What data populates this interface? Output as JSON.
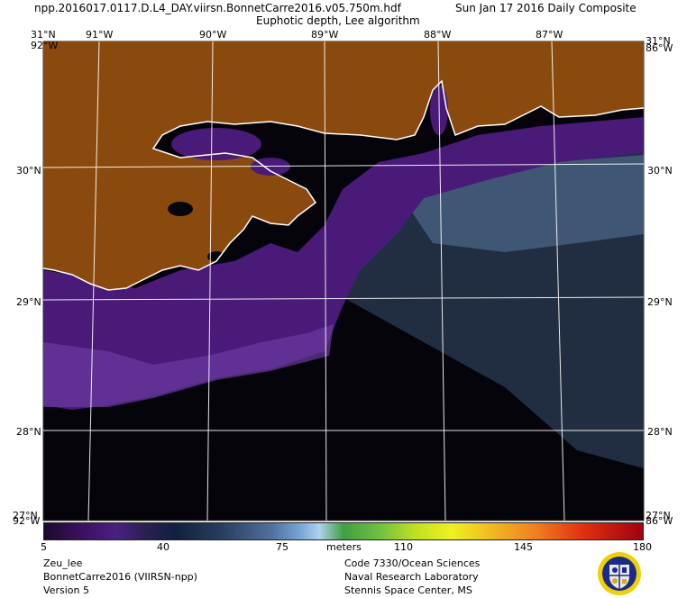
{
  "title": {
    "line1": "npp.2016017.0117.D.L4_DAY.viirsn.BonnetCarre2016.v05.750m.hdf",
    "date": "Sun Jan 17 2016 Daily Composite",
    "line2": "Euphotic depth, Lee algorithm"
  },
  "map": {
    "lon_labels": [
      "91°W",
      "90°W",
      "89°W",
      "88°W",
      "87°W"
    ],
    "lat_labels": [
      "30°N",
      "29°N",
      "28°N"
    ],
    "corner_top_left": "31°N",
    "corner_top_right": "31°N",
    "corner_top_left_overlay": "92°W",
    "corner_top_right_overlay": "86°W",
    "corner_bottom_left": "92°W",
    "corner_bottom_right": "86°W",
    "corner_bottom_left_overlay": "27°N",
    "corner_bottom_right_overlay": "27°N",
    "colors": {
      "land": "#8b4a0d",
      "coast": "#ffffff",
      "grid": "#ffffff",
      "shelf": "#4a1a78",
      "offshore": "#05050a"
    }
  },
  "colorbar": {
    "ticks": [
      "5",
      "40",
      "75",
      "110",
      "145",
      "180"
    ],
    "units": "meters",
    "min": 5,
    "max": 180
  },
  "footer": {
    "left": [
      "Zeu_lee",
      "BonnetCarre2016 (VIIRSN-npp)",
      "Version 5"
    ],
    "right": [
      "Code 7330/Ocean Sciences",
      "Naval Research Laboratory",
      "Stennis Space Center, MS"
    ]
  },
  "logo": {
    "icon": "nrl-seal-icon"
  }
}
